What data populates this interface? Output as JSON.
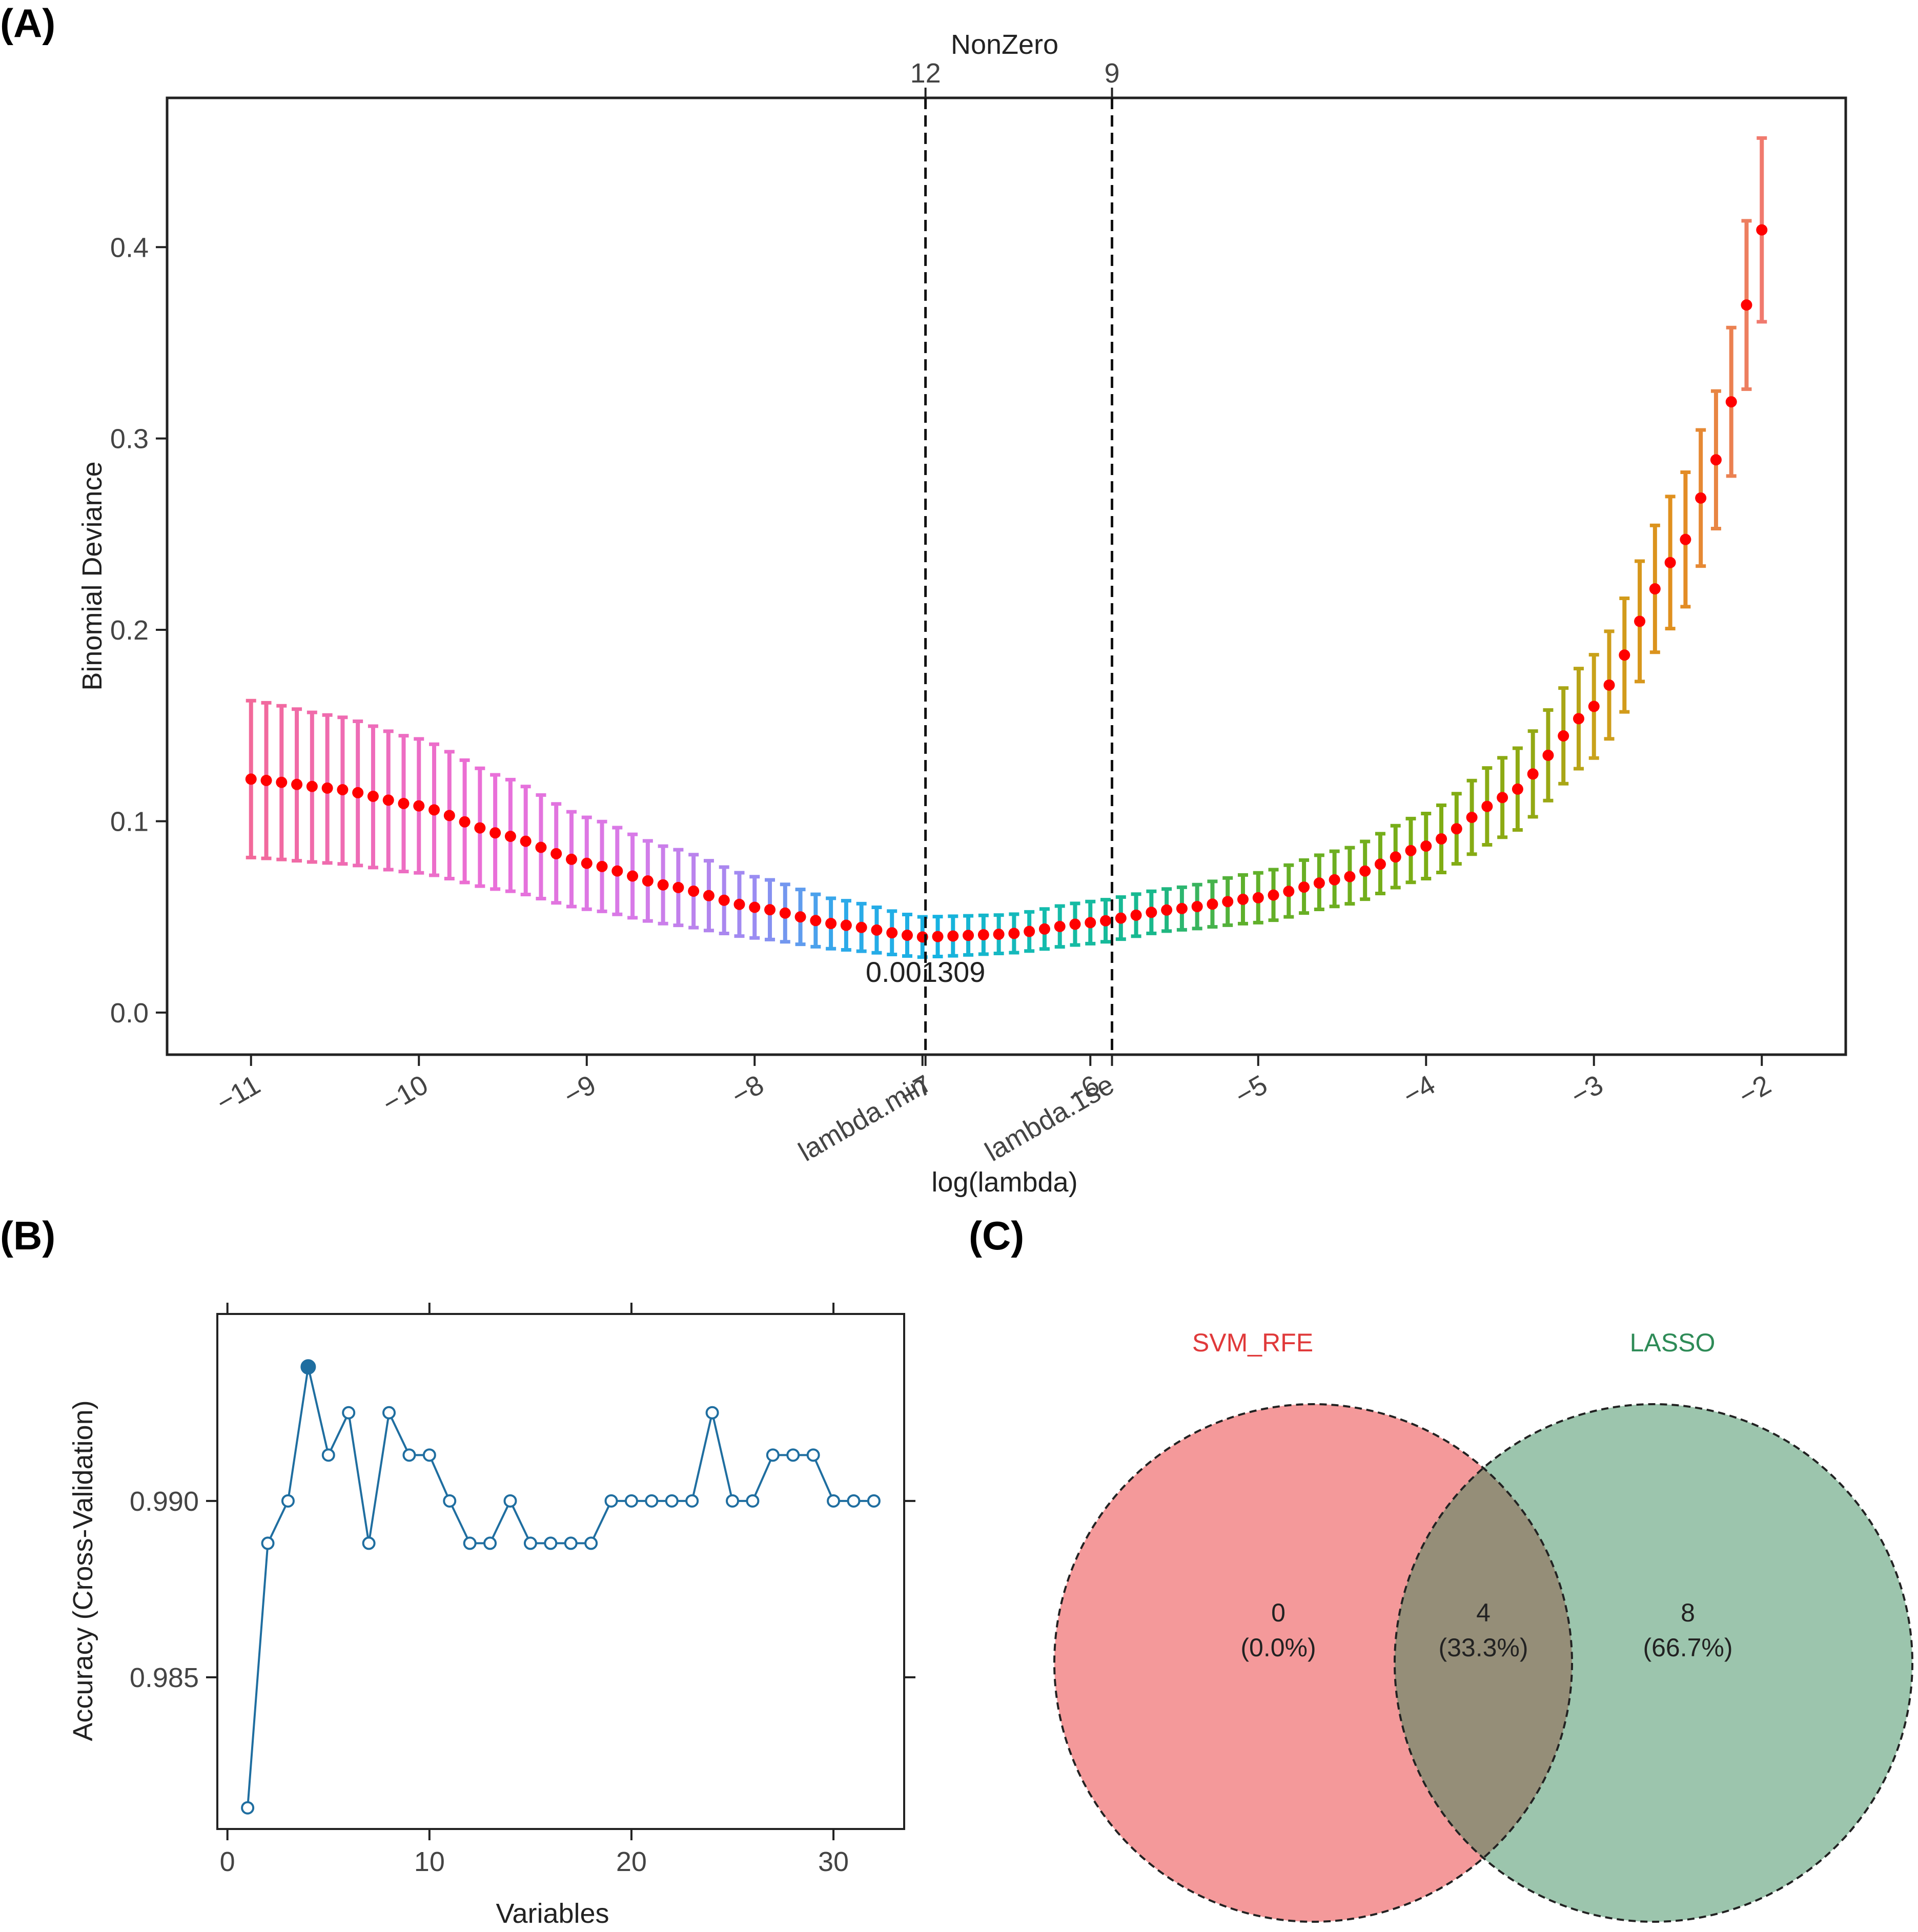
{
  "panels": {
    "a": "(A)",
    "b": "(B)",
    "c": "(C)"
  },
  "colors": {
    "cv_point": "#ff0000",
    "rfe_line": "#1f6ea0",
    "svm_fill": "#f4999a",
    "lasso_fill": "#9cc5ad",
    "overlap_fill": "#958e78",
    "svm_label": "#e0393a",
    "lasso_label": "#2e8b57"
  },
  "chart_data": [
    {
      "type": "errorbar",
      "panel": "(A)",
      "xlabel": "log(lambda)",
      "ylabel": "Binomial Deviance",
      "top_axis_title": "NonZero",
      "top_ticks": [
        {
          "x": -6.982,
          "label": "12"
        },
        {
          "x": -5.871,
          "label": "9"
        }
      ],
      "xlim": [
        -11.5,
        -1.5
      ],
      "ylim": [
        -0.022,
        0.478
      ],
      "xticks": [
        -11,
        -10,
        -9,
        -8,
        -7,
        -6,
        -5,
        -4,
        -3,
        -2
      ],
      "yticks": [
        0.0,
        0.1,
        0.2,
        0.3,
        0.4
      ],
      "ytick_labels": [
        "0.0",
        "0.1",
        "0.2",
        "0.3",
        "0.4"
      ],
      "vlines": [
        {
          "x": -6.982,
          "label": "lambda.min"
        },
        {
          "x": -5.871,
          "label": "lambda.1se"
        }
      ],
      "annotation": {
        "text": "0.001309",
        "x": -6.982,
        "y": 0.016
      },
      "control_points": [
        {
          "x": -11.0,
          "mean": 0.122,
          "lower": 0.081,
          "upper": 0.163
        },
        {
          "x": -10.5,
          "mean": 0.117,
          "lower": 0.078,
          "upper": 0.155
        },
        {
          "x": -10.0,
          "mean": 0.108,
          "lower": 0.073,
          "upper": 0.143
        },
        {
          "x": -9.5,
          "mean": 0.093,
          "lower": 0.064,
          "upper": 0.123
        },
        {
          "x": -9.0,
          "mean": 0.078,
          "lower": 0.054,
          "upper": 0.102
        },
        {
          "x": -8.5,
          "mean": 0.066,
          "lower": 0.046,
          "upper": 0.086
        },
        {
          "x": -8.0,
          "mean": 0.055,
          "lower": 0.039,
          "upper": 0.071
        },
        {
          "x": -7.5,
          "mean": 0.046,
          "lower": 0.033,
          "upper": 0.059
        },
        {
          "x": -7.0,
          "mean": 0.0395,
          "lower": 0.029,
          "upper": 0.05
        },
        {
          "x": -6.5,
          "mean": 0.041,
          "lower": 0.031,
          "upper": 0.051
        },
        {
          "x": -6.0,
          "mean": 0.047,
          "lower": 0.036,
          "upper": 0.058
        },
        {
          "x": -5.5,
          "mean": 0.054,
          "lower": 0.043,
          "upper": 0.065
        },
        {
          "x": -5.0,
          "mean": 0.06,
          "lower": 0.047,
          "upper": 0.073
        },
        {
          "x": -4.5,
          "mean": 0.07,
          "lower": 0.056,
          "upper": 0.085
        },
        {
          "x": -4.0,
          "mean": 0.087,
          "lower": 0.07,
          "upper": 0.104
        },
        {
          "x": -3.5,
          "mean": 0.114,
          "lower": 0.093,
          "upper": 0.135
        },
        {
          "x": -3.0,
          "mean": 0.16,
          "lower": 0.133,
          "upper": 0.187
        },
        {
          "x": -2.5,
          "mean": 0.24,
          "lower": 0.205,
          "upper": 0.275
        },
        {
          "x": -2.25,
          "mean": 0.292,
          "lower": 0.256,
          "upper": 0.328
        },
        {
          "x": -2.0,
          "mean": 0.409,
          "lower": 0.361,
          "upper": 0.457
        }
      ],
      "n_points": 100,
      "color_gradient": [
        {
          "x": -11.0,
          "color": "#f2699a"
        },
        {
          "x": -9.6,
          "color": "#ea6fd8"
        },
        {
          "x": -8.7,
          "color": "#d77ae8"
        },
        {
          "x": -8.0,
          "color": "#9a8cf2"
        },
        {
          "x": -7.5,
          "color": "#2ea9ea"
        },
        {
          "x": -6.9,
          "color": "#16b2e2"
        },
        {
          "x": -6.3,
          "color": "#14bcae"
        },
        {
          "x": -5.6,
          "color": "#18b88a"
        },
        {
          "x": -5.1,
          "color": "#5eb02c"
        },
        {
          "x": -4.0,
          "color": "#7cad14"
        },
        {
          "x": -3.3,
          "color": "#95a914"
        },
        {
          "x": -3.0,
          "color": "#c9a21a"
        },
        {
          "x": -2.5,
          "color": "#e28e1e"
        },
        {
          "x": -2.0,
          "color": "#f07a6e"
        }
      ]
    },
    {
      "type": "line",
      "panel": "(B)",
      "xlabel": "Variables",
      "ylabel": "Accuracy (Cross-Validation)",
      "xlim": [
        -0.5,
        33.5
      ],
      "ylim": [
        0.9807,
        0.9953
      ],
      "xticks": [
        0,
        10,
        20,
        30
      ],
      "yticks": [
        0.985,
        0.99
      ],
      "ytick_labels": [
        "0.985",
        "0.990"
      ],
      "x": [
        1,
        2,
        3,
        4,
        5,
        6,
        7,
        8,
        9,
        10,
        11,
        12,
        13,
        14,
        15,
        16,
        17,
        18,
        19,
        20,
        21,
        22,
        23,
        24,
        25,
        26,
        27,
        28,
        29,
        30,
        31,
        32
      ],
      "y": [
        0.9813,
        0.9888,
        0.99,
        0.9938,
        0.9913,
        0.9925,
        0.9888,
        0.9925,
        0.9913,
        0.9913,
        0.99,
        0.9888,
        0.9888,
        0.99,
        0.9888,
        0.9888,
        0.9888,
        0.9888,
        0.99,
        0.99,
        0.99,
        0.99,
        0.99,
        0.9925,
        0.99,
        0.99,
        0.9913,
        0.9913,
        0.9913,
        0.99,
        0.99,
        0.99
      ],
      "highlight_index": 3
    },
    {
      "type": "venn",
      "panel": "(C)",
      "sets": [
        {
          "name": "SVM_RFE",
          "count": "0",
          "percent": "(0.0%)"
        },
        {
          "name": "LASSO",
          "count": "8",
          "percent": "(66.7%)"
        }
      ],
      "intersection": {
        "count": "4",
        "percent": "(33.3%)"
      }
    }
  ]
}
